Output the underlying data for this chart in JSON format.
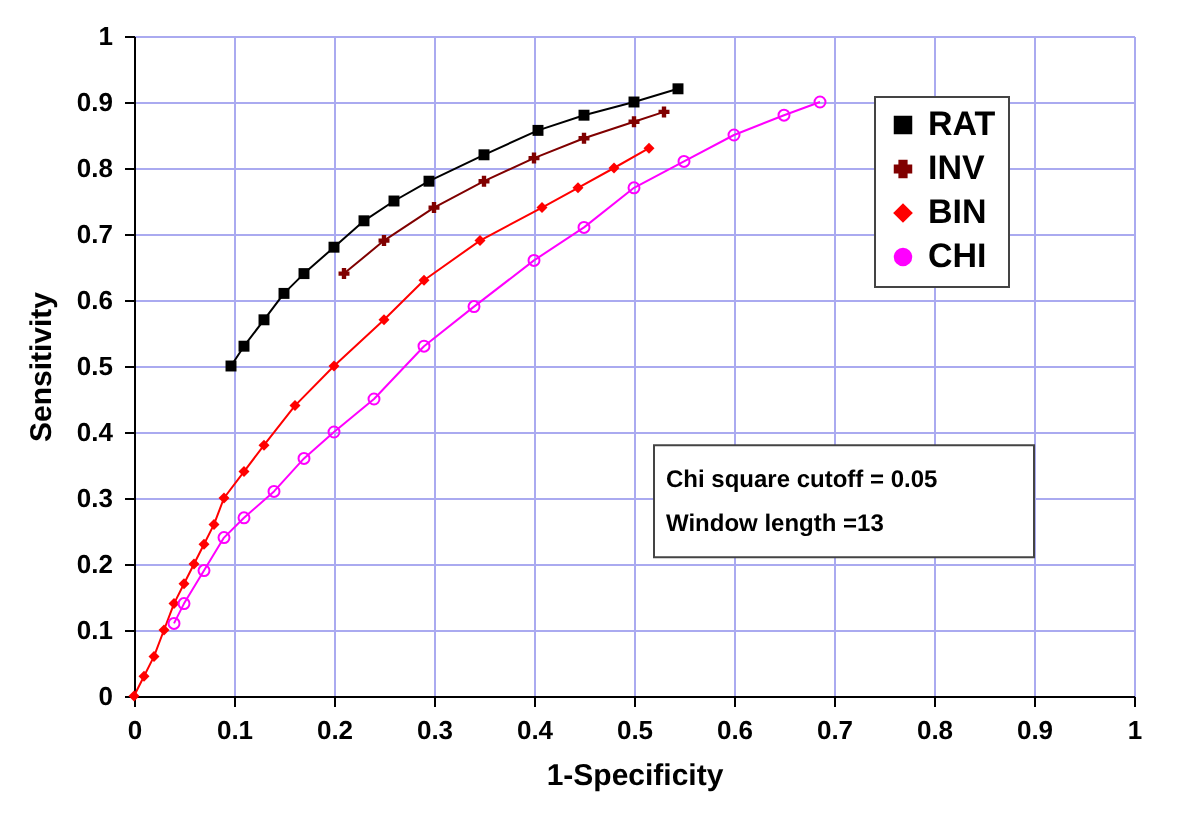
{
  "chart_data": {
    "type": "line",
    "xlabel": "1-Specificity",
    "ylabel": "Sensitivity",
    "xlim": [
      0,
      1
    ],
    "ylim": [
      0,
      1
    ],
    "xticks": [
      0,
      0.1,
      0.2,
      0.3,
      0.4,
      0.5,
      0.6,
      0.7,
      0.8,
      0.9,
      1
    ],
    "yticks": [
      0,
      0.1,
      0.2,
      0.3,
      0.4,
      0.5,
      0.6,
      0.7,
      0.8,
      0.9,
      1
    ],
    "grid": true,
    "legend": "top right",
    "annotations": [
      "Chi square cutoff = 0.05",
      "Window length =13"
    ],
    "series": [
      {
        "name": "RAT",
        "color": "#000000",
        "marker": "square",
        "x": [
          0.097,
          0.11,
          0.13,
          0.15,
          0.17,
          0.2,
          0.23,
          0.26,
          0.295,
          0.35,
          0.404,
          0.45,
          0.5,
          0.544
        ],
        "values": [
          0.5,
          0.53,
          0.57,
          0.61,
          0.64,
          0.68,
          0.72,
          0.75,
          0.78,
          0.82,
          0.857,
          0.88,
          0.9,
          0.92
        ]
      },
      {
        "name": "INV",
        "color": "#800000",
        "marker": "cross",
        "x": [
          0.21,
          0.25,
          0.3,
          0.35,
          0.4,
          0.45,
          0.5,
          0.53
        ],
        "values": [
          0.64,
          0.69,
          0.74,
          0.78,
          0.815,
          0.845,
          0.87,
          0.885
        ]
      },
      {
        "name": "BIN",
        "color": "#ff0000",
        "marker": "diamond",
        "x": [
          0,
          0.01,
          0.02,
          0.03,
          0.04,
          0.05,
          0.06,
          0.07,
          0.08,
          0.09,
          0.11,
          0.13,
          0.161,
          0.2,
          0.25,
          0.29,
          0.346,
          0.408,
          0.444,
          0.48,
          0.515
        ],
        "values": [
          0,
          0.03,
          0.06,
          0.1,
          0.14,
          0.17,
          0.2,
          0.23,
          0.26,
          0.3,
          0.34,
          0.38,
          0.44,
          0.5,
          0.57,
          0.63,
          0.69,
          0.74,
          0.77,
          0.8,
          0.83
        ]
      },
      {
        "name": "CHI",
        "color": "#ff00ff",
        "marker": "circle",
        "x": [
          0.04,
          0.05,
          0.07,
          0.09,
          0.11,
          0.14,
          0.17,
          0.2,
          0.24,
          0.29,
          0.34,
          0.4,
          0.45,
          0.5,
          0.55,
          0.6,
          0.65,
          0.686
        ],
        "values": [
          0.11,
          0.14,
          0.19,
          0.24,
          0.27,
          0.31,
          0.36,
          0.4,
          0.45,
          0.53,
          0.59,
          0.66,
          0.71,
          0.77,
          0.81,
          0.85,
          0.88,
          0.9
        ]
      }
    ]
  }
}
